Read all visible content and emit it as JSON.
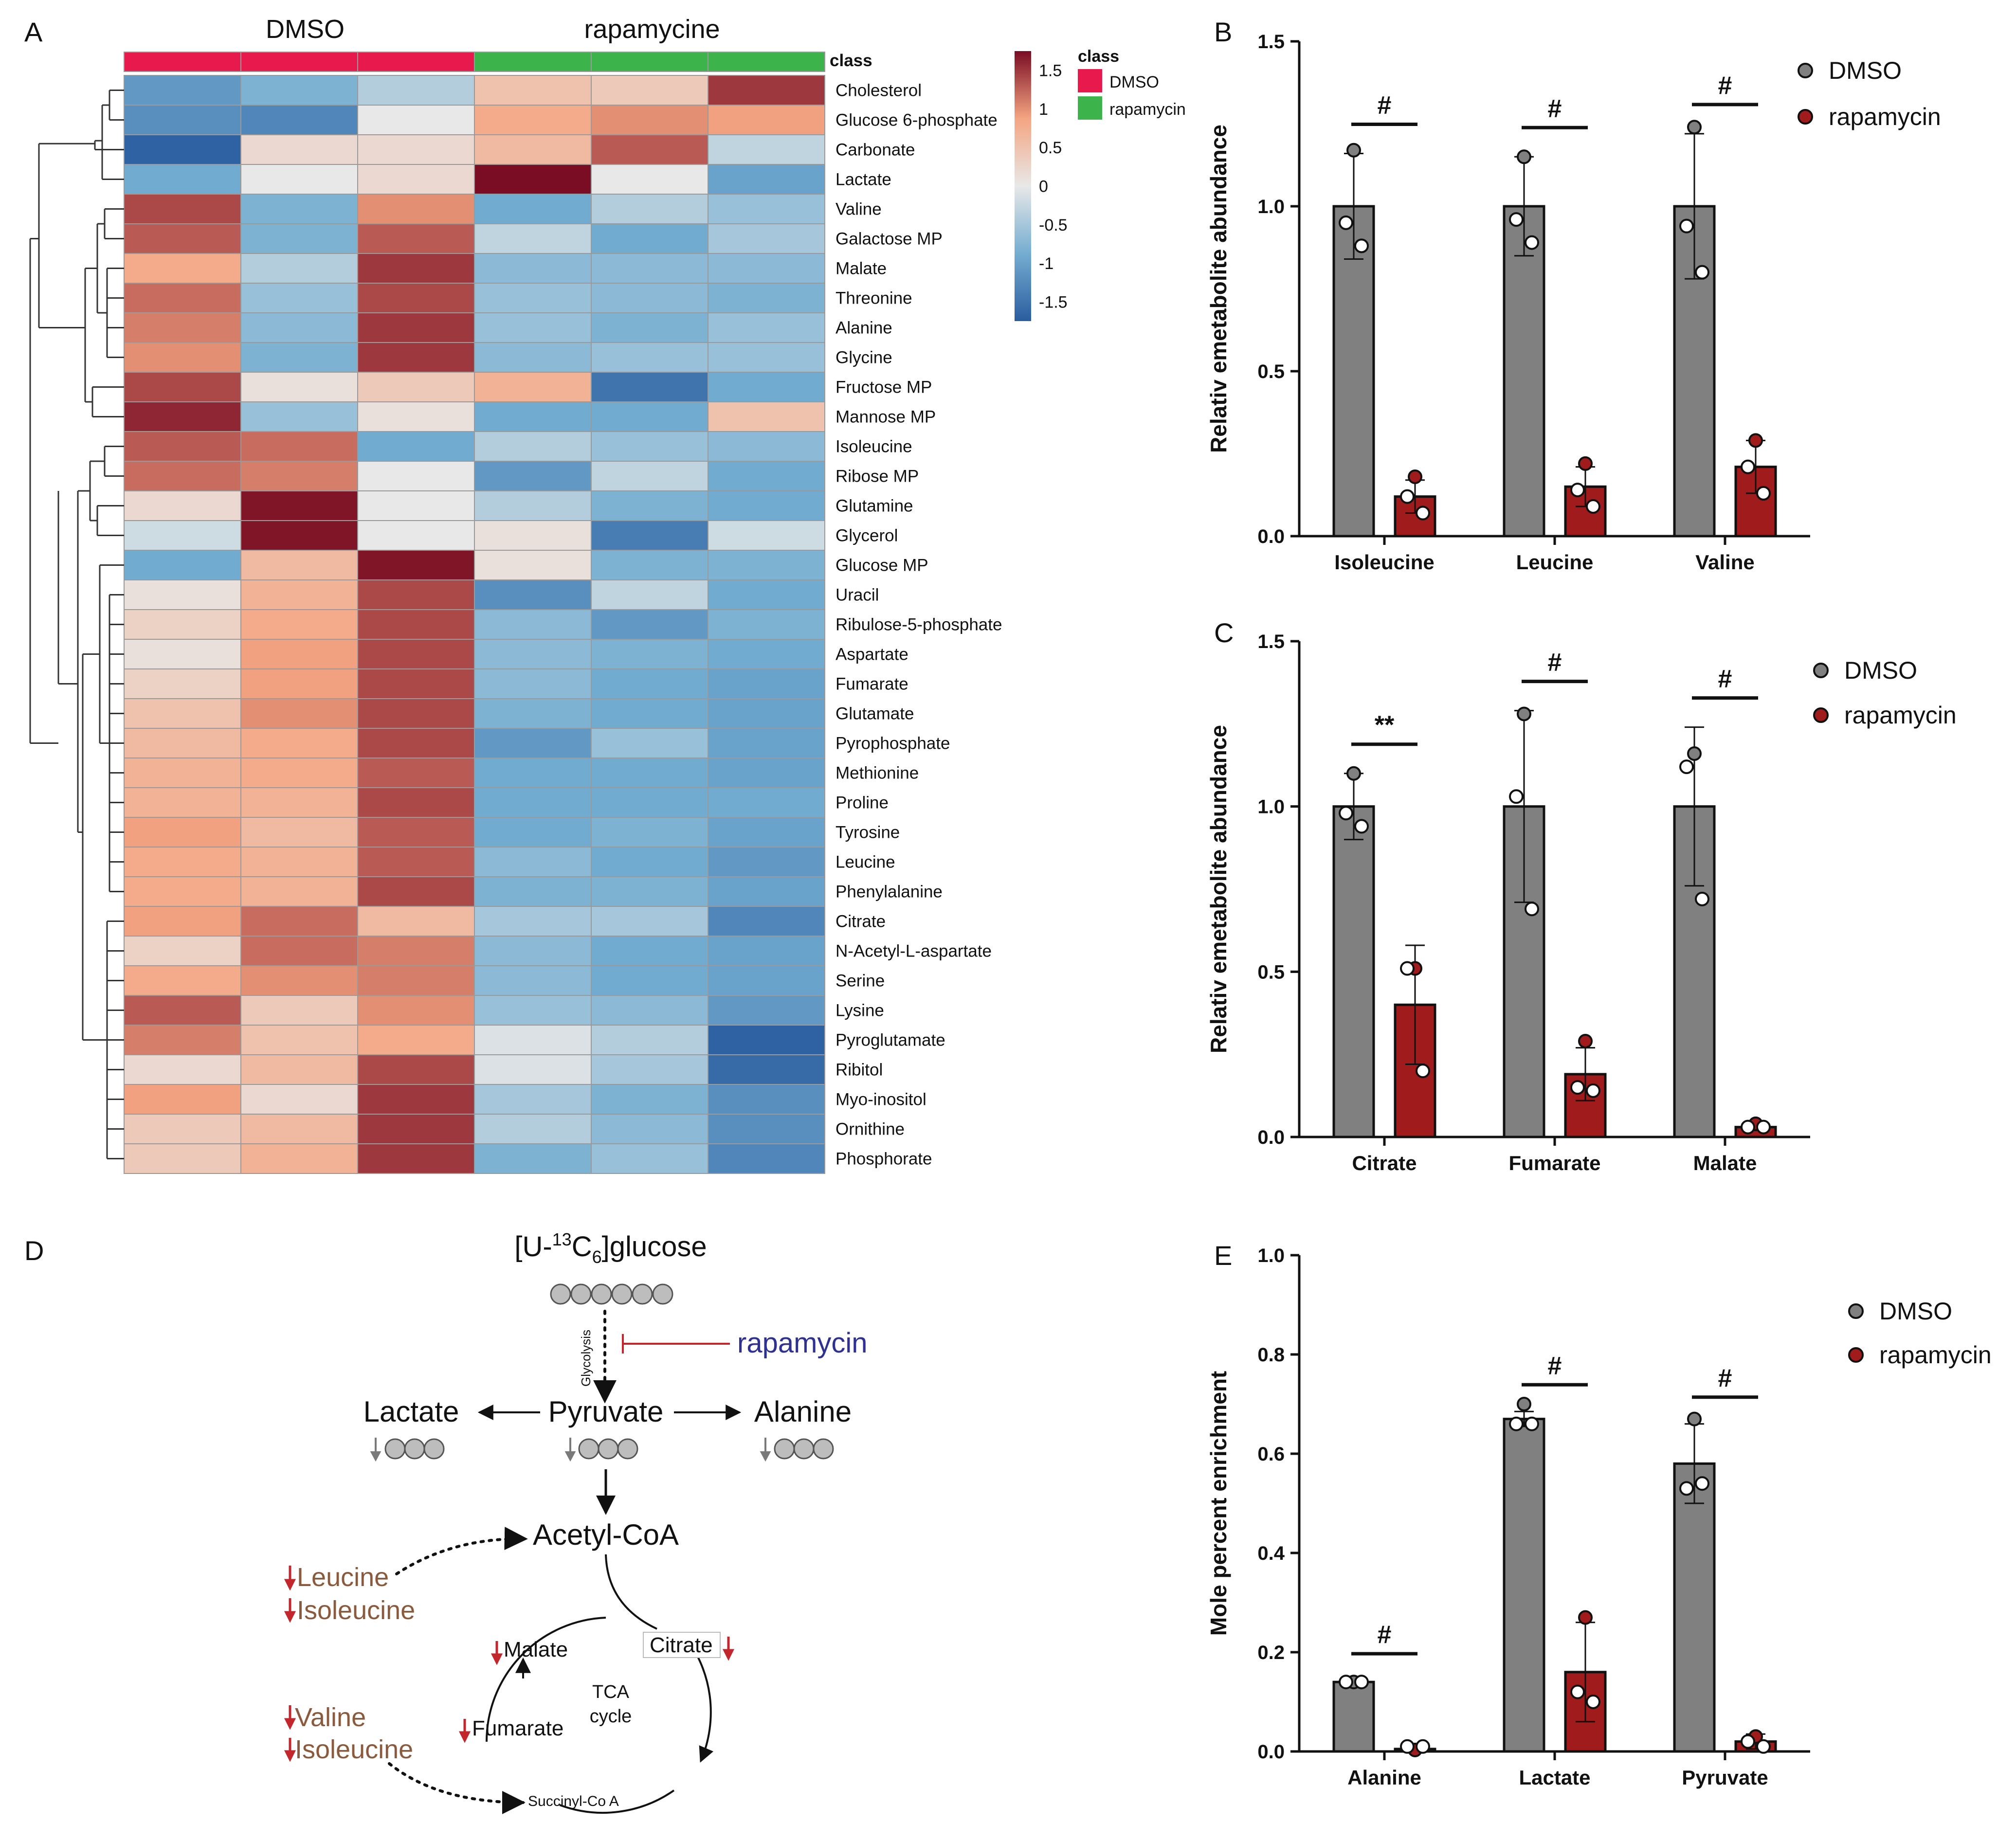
{
  "chart_data": [
    {
      "panel": "A",
      "type": "heatmap",
      "column_groups": [
        {
          "label": "DMSO",
          "color": "#e8194d"
        },
        {
          "label": "rapamycine",
          "color": "#3cb44b"
        }
      ],
      "class_label": "class",
      "legend": {
        "title": "class",
        "items": [
          {
            "label": "DMSO",
            "color": "#e8194d"
          },
          {
            "label": "rapamycin",
            "color": "#3cb44b"
          }
        ]
      },
      "colorbar_ticks": [
        "1.5",
        "1",
        "0.5",
        "0",
        "-0.5",
        "-1",
        "-1.5"
      ],
      "colorbar_range": [
        -1.75,
        1.75
      ],
      "rows": [
        "Cholesterol",
        "Glucose 6-phosphate",
        "Carbonate",
        "Lactate",
        "Valine",
        "Galactose MP",
        "Malate",
        "Threonine",
        "Alanine",
        "Glycine",
        "Fructose MP",
        "Mannose MP",
        "Isoleucine",
        "Ribose MP",
        "Glutamine",
        "Glycerol",
        "Glucose MP",
        "Uracil",
        "Ribulose-5-phosphate",
        "Aspartate",
        "Fumarate",
        "Glutamate",
        "Pyrophosphate",
        "Methionine",
        "Proline",
        "Tyrosine",
        "Leucine",
        "Phenylalanine",
        "Citrate",
        "N-Acetyl-L-aspartate",
        "Serine",
        "Lysine",
        "Pyroglutamate",
        "Ribitol",
        "Myo-inositol",
        "Ornithine",
        "Phosphorate"
      ],
      "values": [
        [
          -1.1,
          -0.8,
          -0.4,
          0.5,
          0.4,
          1.5
        ],
        [
          -1.2,
          -1.3,
          0.0,
          0.8,
          1.0,
          0.9
        ],
        [
          -1.7,
          0.2,
          0.2,
          0.6,
          1.3,
          -0.3
        ],
        [
          -0.9,
          0.0,
          0.2,
          1.75,
          0.0,
          -1.0
        ],
        [
          1.4,
          -0.8,
          1.0,
          -0.9,
          -0.4,
          -0.6
        ],
        [
          1.3,
          -0.8,
          1.3,
          -0.3,
          -0.9,
          -0.5
        ],
        [
          0.8,
          -0.4,
          1.5,
          -0.7,
          -0.7,
          -0.7
        ],
        [
          1.2,
          -0.6,
          1.4,
          -0.6,
          -0.7,
          -0.8
        ],
        [
          1.1,
          -0.7,
          1.5,
          -0.6,
          -0.8,
          -0.6
        ],
        [
          1.0,
          -0.8,
          1.5,
          -0.7,
          -0.6,
          -0.6
        ],
        [
          1.4,
          0.1,
          0.4,
          0.7,
          -1.5,
          -0.9
        ],
        [
          1.6,
          -0.6,
          0.1,
          -0.9,
          -0.9,
          0.5
        ],
        [
          1.3,
          1.2,
          -0.9,
          -0.4,
          -0.6,
          -0.7
        ],
        [
          1.2,
          1.1,
          0.0,
          -1.1,
          -0.3,
          -0.9
        ],
        [
          0.2,
          1.7,
          0.0,
          -0.4,
          -0.8,
          -0.9
        ],
        [
          -0.2,
          1.7,
          0.0,
          0.1,
          -1.4,
          -0.2
        ],
        [
          -0.9,
          0.6,
          1.7,
          0.1,
          -0.8,
          -0.8
        ],
        [
          0.1,
          0.7,
          1.4,
          -1.2,
          -0.3,
          -0.9
        ],
        [
          0.3,
          0.8,
          1.4,
          -0.7,
          -1.1,
          -0.8
        ],
        [
          0.1,
          0.9,
          1.4,
          -0.7,
          -0.8,
          -0.9
        ],
        [
          0.3,
          0.9,
          1.4,
          -0.7,
          -0.9,
          -1.0
        ],
        [
          0.5,
          1.0,
          1.4,
          -0.8,
          -0.9,
          -1.0
        ],
        [
          0.6,
          0.8,
          1.4,
          -1.1,
          -0.6,
          -1.0
        ],
        [
          0.7,
          0.8,
          1.3,
          -0.9,
          -0.9,
          -1.0
        ],
        [
          0.7,
          0.7,
          1.4,
          -0.9,
          -0.9,
          -0.9
        ],
        [
          0.9,
          0.6,
          1.3,
          -0.9,
          -0.8,
          -1.0
        ],
        [
          0.8,
          0.7,
          1.3,
          -0.7,
          -0.9,
          -1.1
        ],
        [
          0.8,
          0.7,
          1.4,
          -0.8,
          -0.8,
          -1.0
        ],
        [
          0.9,
          1.2,
          0.6,
          -0.5,
          -0.5,
          -1.3
        ],
        [
          0.3,
          1.2,
          1.1,
          -0.7,
          -0.9,
          -1.0
        ],
        [
          0.8,
          1.0,
          1.1,
          -0.7,
          -0.9,
          -1.0
        ],
        [
          1.3,
          0.4,
          1.0,
          -0.6,
          -0.7,
          -1.1
        ],
        [
          1.1,
          0.5,
          0.8,
          -0.1,
          -0.4,
          -1.7
        ],
        [
          0.2,
          0.6,
          1.4,
          -0.1,
          -0.5,
          -1.6
        ],
        [
          0.9,
          0.2,
          1.5,
          -0.5,
          -0.8,
          -1.2
        ],
        [
          0.4,
          0.6,
          1.5,
          -0.4,
          -0.7,
          -1.2
        ],
        [
          0.4,
          0.7,
          1.5,
          -0.8,
          -0.6,
          -1.3
        ]
      ]
    },
    {
      "panel": "B",
      "type": "bar",
      "categories": [
        "Isoleucine",
        "Leucine",
        "Valine"
      ],
      "ylabel": "Relativ emetabolite abundance",
      "ylim": [
        0,
        1.5
      ],
      "yticks": [
        "0.0",
        "0.5",
        "1.0",
        "1.5"
      ],
      "series": [
        {
          "name": "DMSO",
          "color": "#808080",
          "values": [
            1.0,
            1.0,
            1.0
          ],
          "sd": [
            0.16,
            0.15,
            0.22
          ],
          "points": [
            [
              1.17,
              0.95,
              0.88
            ],
            [
              1.15,
              0.96,
              0.89
            ],
            [
              1.24,
              0.94,
              0.8
            ]
          ]
        },
        {
          "name": "rapamycin",
          "color": "#a01b1b",
          "values": [
            0.12,
            0.15,
            0.21
          ],
          "sd": [
            0.05,
            0.06,
            0.08
          ],
          "points": [
            [
              0.18,
              0.12,
              0.07
            ],
            [
              0.22,
              0.14,
              0.09
            ],
            [
              0.29,
              0.21,
              0.13
            ]
          ]
        }
      ],
      "significance": [
        "#",
        "#",
        "#"
      ]
    },
    {
      "panel": "C",
      "type": "bar",
      "categories": [
        "Citrate",
        "Fumarate",
        "Malate"
      ],
      "ylabel": "Relativ emetabolite abundance",
      "ylim": [
        0,
        1.5
      ],
      "yticks": [
        "0.0",
        "0.5",
        "1.0",
        "1.5"
      ],
      "series": [
        {
          "name": "DMSO",
          "color": "#808080",
          "values": [
            1.0,
            1.0,
            1.0
          ],
          "sd": [
            0.1,
            0.29,
            0.24
          ],
          "points": [
            [
              1.1,
              0.98,
              0.94
            ],
            [
              1.28,
              1.03,
              0.69
            ],
            [
              1.16,
              1.12,
              0.72
            ]
          ]
        },
        {
          "name": "rapamycin",
          "color": "#a01b1b",
          "values": [
            0.4,
            0.19,
            0.03
          ],
          "sd": [
            0.18,
            0.08,
            0.01
          ],
          "points": [
            [
              0.51,
              0.51,
              0.2
            ],
            [
              0.29,
              0.15,
              0.14
            ],
            [
              0.04,
              0.03,
              0.03
            ]
          ]
        }
      ],
      "significance": [
        "**",
        "#",
        "#"
      ]
    },
    {
      "panel": "E",
      "type": "bar",
      "categories": [
        "Alanine",
        "Lactate",
        "Pyruvate"
      ],
      "ylabel": "Mole percent enrichment",
      "ylim": [
        0,
        1.0
      ],
      "yticks": [
        "0.0",
        "0.2",
        "0.4",
        "0.6",
        "0.8",
        "1.0"
      ],
      "series": [
        {
          "name": "DMSO",
          "color": "#808080",
          "values": [
            0.14,
            0.67,
            0.58
          ],
          "sd": [
            0.003,
            0.015,
            0.08
          ],
          "points": [
            [
              0.14,
              0.14,
              0.14
            ],
            [
              0.7,
              0.66,
              0.66
            ],
            [
              0.67,
              0.53,
              0.54
            ]
          ]
        },
        {
          "name": "rapamycin",
          "color": "#a01b1b",
          "values": [
            0.005,
            0.16,
            0.02
          ],
          "sd": [
            0.003,
            0.1,
            0.015
          ],
          "points": [
            [
              0.003,
              0.01,
              0.01
            ],
            [
              0.27,
              0.12,
              0.1
            ],
            [
              0.03,
              0.02,
              0.01
            ]
          ]
        }
      ],
      "significance": [
        "#",
        "#",
        "#"
      ]
    }
  ],
  "panels": {
    "A": {
      "letter": "A"
    },
    "B": {
      "letter": "B",
      "legend": [
        "DMSO",
        "rapamycin"
      ]
    },
    "C": {
      "letter": "C",
      "legend": [
        "DMSO",
        "rapamycin"
      ]
    },
    "D": {
      "letter": "D"
    },
    "E": {
      "letter": "E",
      "legend": [
        "DMSO",
        "rapamycin"
      ]
    }
  },
  "diagram": {
    "glucose_prefix": "[U-",
    "glucose_iso": "13",
    "glucose_c": "C",
    "glucose_sub": "6",
    "glucose_suffix": "]glucose",
    "glycolysis": "Glycolysis",
    "rapamycin": "rapamycin",
    "pyruvate": "Pyruvate",
    "lactate": "Lactate",
    "alanine": "Alanine",
    "acetyl_coa": "Acetyl-CoA",
    "leucine": "Leucine",
    "isoleucine_1": "Isoleucine",
    "valine": "Valine",
    "isoleucine_2": "Isoleucine",
    "malate": "Malate",
    "citrate": "Citrate",
    "fumarate": "Fumarate",
    "tca_1": "TCA",
    "tca_2": "cycle",
    "succinyl": "Succinyl-Co A",
    "colors": {
      "rapamycin": "#2e3192",
      "amino": "#8b5a3c",
      "down_arrow": "#c1272d",
      "inhibit": "#c1272d"
    }
  }
}
